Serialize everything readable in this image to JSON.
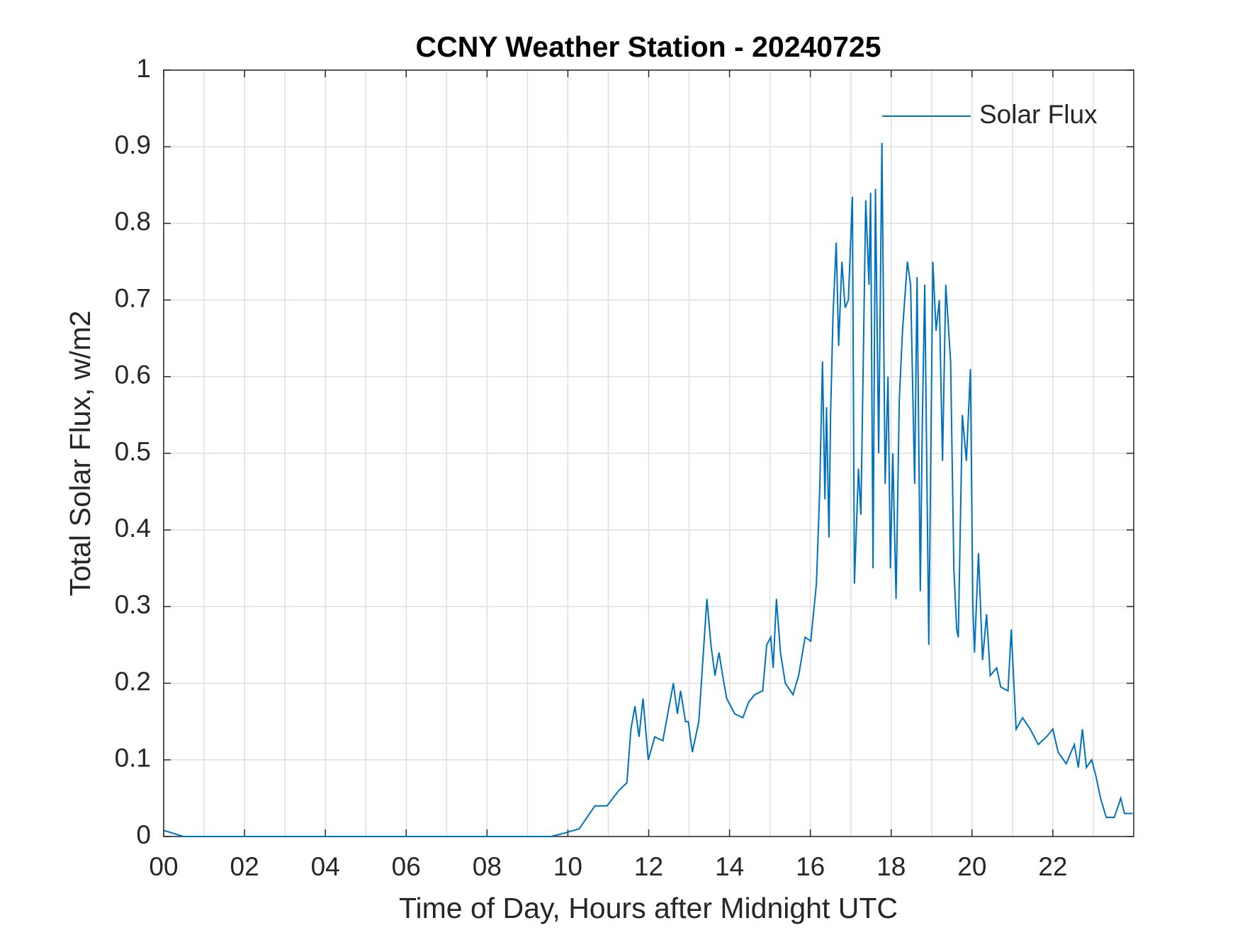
{
  "chart_data": {
    "type": "line",
    "title": "CCNY Weather Station - 20240725",
    "xlabel": "Time of Day, Hours after Midnight UTC",
    "ylabel": "Total Solar Flux, w/m2",
    "xlim": [
      0,
      24
    ],
    "ylim": [
      0,
      1
    ],
    "xticks": [
      {
        "value": 0,
        "label": "00"
      },
      {
        "value": 2,
        "label": "02"
      },
      {
        "value": 4,
        "label": "04"
      },
      {
        "value": 6,
        "label": "06"
      },
      {
        "value": 8,
        "label": "08"
      },
      10,
      12,
      14,
      16,
      18,
      20,
      22
    ],
    "xminorticks": [
      1,
      3,
      5,
      7,
      9,
      11,
      13,
      15,
      17,
      19,
      21,
      23
    ],
    "yticks": [
      0,
      0.1,
      0.2,
      0.3,
      0.4,
      0.5,
      0.6,
      0.7,
      0.8,
      0.9,
      1
    ],
    "grid": true,
    "legend": "northeast",
    "x": [
      0,
      0.49,
      9.58,
      9.88,
      10.28,
      10.67,
      10.97,
      11.26,
      11.46,
      11.56,
      11.66,
      11.76,
      11.86,
      11.99,
      12.15,
      12.35,
      12.61,
      12.71,
      12.79,
      12.91,
      12.98,
      13.08,
      13.24,
      13.34,
      13.44,
      13.54,
      13.64,
      13.74,
      13.83,
      13.93,
      14.13,
      14.33,
      14.47,
      14.62,
      14.82,
      14.92,
      15.02,
      15.08,
      15.16,
      15.26,
      15.38,
      15.57,
      15.71,
      15.87,
      16.01,
      16.15,
      16.23,
      16.3,
      16.36,
      16.4,
      16.46,
      16.5,
      16.56,
      16.64,
      16.7,
      16.78,
      16.86,
      16.94,
      17.04,
      17.09,
      17.19,
      17.25,
      17.37,
      17.45,
      17.49,
      17.55,
      17.61,
      17.69,
      17.77,
      17.85,
      17.92,
      17.98,
      18.04,
      18.12,
      18.2,
      18.28,
      18.4,
      18.48,
      18.58,
      18.64,
      18.72,
      18.77,
      18.83,
      18.93,
      19.03,
      19.11,
      19.19,
      19.27,
      19.35,
      19.47,
      19.55,
      19.62,
      19.66,
      19.76,
      19.86,
      19.96,
      20.02,
      20.06,
      20.16,
      20.26,
      20.36,
      20.45,
      20.61,
      20.71,
      20.89,
      20.97,
      21.09,
      21.25,
      21.44,
      21.64,
      21.84,
      22,
      22.13,
      22.33,
      22.53,
      22.63,
      22.73,
      22.83,
      22.96,
      23.06,
      23.18,
      23.32,
      23.52,
      23.68,
      23.77,
      23.97
    ],
    "series": [
      {
        "name": "Solar Flux",
        "color": "#0072bd",
        "values": [
          0.008,
          0,
          0,
          0.004,
          0.01,
          0.04,
          0.04,
          0.06,
          0.07,
          0.14,
          0.17,
          0.13,
          0.18,
          0.1,
          0.13,
          0.125,
          0.2,
          0.16,
          0.19,
          0.15,
          0.15,
          0.11,
          0.15,
          0.23,
          0.31,
          0.25,
          0.21,
          0.24,
          0.21,
          0.18,
          0.16,
          0.155,
          0.175,
          0.185,
          0.19,
          0.25,
          0.26,
          0.22,
          0.31,
          0.24,
          0.2,
          0.185,
          0.21,
          0.26,
          0.255,
          0.33,
          0.45,
          0.62,
          0.44,
          0.56,
          0.39,
          0.55,
          0.68,
          0.775,
          0.64,
          0.75,
          0.69,
          0.7,
          0.835,
          0.33,
          0.48,
          0.42,
          0.83,
          0.72,
          0.84,
          0.35,
          0.845,
          0.5,
          0.905,
          0.46,
          0.6,
          0.35,
          0.5,
          0.31,
          0.57,
          0.66,
          0.75,
          0.72,
          0.46,
          0.73,
          0.32,
          0.54,
          0.72,
          0.25,
          0.75,
          0.66,
          0.7,
          0.49,
          0.72,
          0.62,
          0.35,
          0.27,
          0.26,
          0.55,
          0.49,
          0.61,
          0.3,
          0.24,
          0.37,
          0.23,
          0.29,
          0.21,
          0.22,
          0.195,
          0.19,
          0.27,
          0.14,
          0.155,
          0.14,
          0.12,
          0.13,
          0.14,
          0.11,
          0.095,
          0.12,
          0.09,
          0.14,
          0.09,
          0.1,
          0.08,
          0.05,
          0.025,
          0.025,
          0.05,
          0.03,
          0.03
        ]
      }
    ]
  }
}
